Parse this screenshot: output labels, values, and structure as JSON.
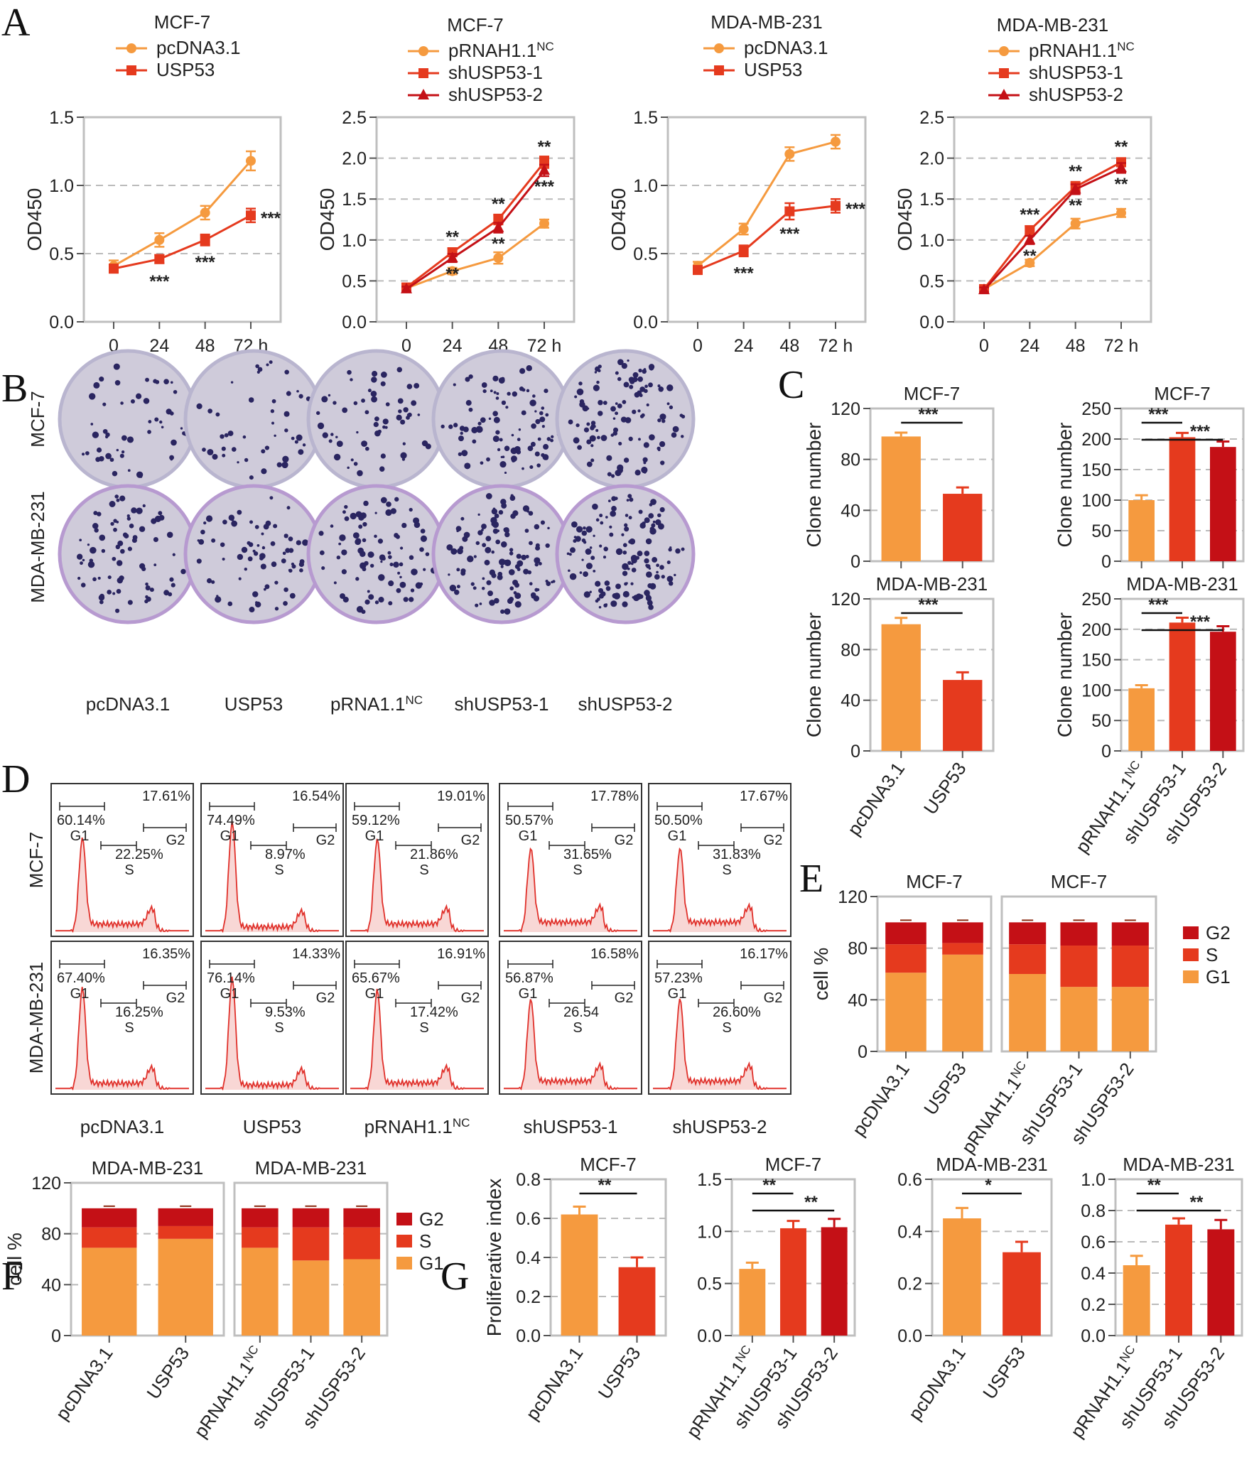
{
  "panel_labels": {
    "a": "A",
    "b": "B",
    "c": "C",
    "d": "D",
    "e": "E",
    "f": "F",
    "g": "G"
  },
  "colors": {
    "orange": "#F59A3F",
    "red": "#E53A1E",
    "darkred": "#C41016",
    "gridline": "#BBBBBB",
    "plate_bg": "#CFCBDA",
    "colony": "#2A2560",
    "flow_line": "#E0302A",
    "flow_fill": "#F8D7D5"
  },
  "units": {
    "hours": "h"
  },
  "legend_labels": {
    "g2": "G2",
    "s": "S",
    "g1": "G1"
  },
  "panel_b": {
    "row_labels": [
      "MCF-7",
      "MDA-MB-231"
    ],
    "col_labels": [
      "pcDNA3.1",
      "USP53",
      "pRNA1.1",
      "shUSP53-1",
      "shUSP53-2"
    ],
    "col_superscripts": [
      "",
      "",
      "NC",
      "",
      ""
    ]
  },
  "panel_d": {
    "row_labels": [
      "MCF-7",
      "MDA-MB-231"
    ],
    "col_labels": [
      "pcDNA3.1",
      "USP53",
      "pRNAH1.1",
      "shUSP53-1",
      "shUSP53-2"
    ],
    "col_superscripts": [
      "",
      "",
      "NC",
      "",
      ""
    ],
    "phase_labels": {
      "g1": "G1",
      "s": "S",
      "g2": "G2"
    },
    "cells": [
      [
        {
          "g1": "60.14%",
          "s": "22.25%",
          "g2": "17.61%"
        },
        {
          "g1": "74.49%",
          "s": "8.97%",
          "g2": "16.54%"
        },
        {
          "g1": "59.12%",
          "s": "21.86%",
          "g2": "19.01%"
        },
        {
          "g1": "50.57%",
          "s": "31.65%",
          "g2": "17.78%"
        },
        {
          "g1": "50.50%",
          "s": "31.83%",
          "g2": "17.67%"
        }
      ],
      [
        {
          "g1": "67.40%",
          "s": "16.25%",
          "g2": "16.35%"
        },
        {
          "g1": "76.14%",
          "s": "9.53%",
          "g2": "14.33%"
        },
        {
          "g1": "65.67%",
          "s": "17.42%",
          "g2": "16.91%"
        },
        {
          "g1": "56.87%",
          "s": "26.54",
          "g2": "16.58%"
        },
        {
          "g1": "57.23%",
          "s": "26.60%",
          "g2": "16.17%"
        }
      ]
    ]
  },
  "chart_data": [
    {
      "panel": "A",
      "type": "line",
      "title": "MCF-7",
      "ylabel": "OD450",
      "x": [
        "0",
        "24",
        "48",
        "72"
      ],
      "ylim": [
        0,
        1.5
      ],
      "yticks": [
        "0.0",
        "0.5",
        "1.0",
        "1.5"
      ],
      "series": [
        {
          "name": "pcDNA3.1",
          "values": [
            0.41,
            0.6,
            0.8,
            1.18
          ],
          "errors": [
            0.04,
            0.05,
            0.05,
            0.07
          ]
        },
        {
          "name": "USP53",
          "values": [
            0.39,
            0.46,
            0.6,
            0.78
          ],
          "errors": [
            0.03,
            0.03,
            0.04,
            0.05
          ]
        }
      ],
      "annotations": [
        [
          "***",
          "***",
          "***"
        ]
      ]
    },
    {
      "panel": "A",
      "type": "line",
      "title": "MCF-7",
      "ylabel": "OD450",
      "x": [
        "0",
        "24",
        "48",
        "72"
      ],
      "ylim": [
        0,
        2.5
      ],
      "yticks": [
        "0.0",
        "0.5",
        "1.0",
        "1.5",
        "2.0",
        "2.5"
      ],
      "series": [
        {
          "name": "pRNAH1.1",
          "superscript": "NC",
          "values": [
            0.41,
            0.62,
            0.78,
            1.2
          ],
          "errors": [
            0.03,
            0.04,
            0.07,
            0.05
          ]
        },
        {
          "name": "shUSP53-1",
          "values": [
            0.42,
            0.85,
            1.25,
            1.95
          ],
          "errors": [
            0.03,
            0.05,
            0.06,
            0.07
          ]
        },
        {
          "name": "shUSP53-2",
          "values": [
            0.4,
            0.78,
            1.15,
            1.85
          ],
          "errors": [
            0.03,
            0.05,
            0.06,
            0.07
          ]
        }
      ],
      "annotations": [
        [
          "**",
          "**",
          "**"
        ],
        [
          "**",
          "**",
          "***"
        ]
      ]
    },
    {
      "panel": "A",
      "type": "line",
      "title": "MDA-MB-231",
      "ylabel": "OD450",
      "x": [
        "0",
        "24",
        "48",
        "72"
      ],
      "ylim": [
        0,
        1.5
      ],
      "yticks": [
        "0.0",
        "0.5",
        "1.0",
        "1.5"
      ],
      "series": [
        {
          "name": "pcDNA3.1",
          "values": [
            0.41,
            0.68,
            1.23,
            1.32
          ],
          "errors": [
            0.03,
            0.04,
            0.05,
            0.05
          ]
        },
        {
          "name": "USP53",
          "values": [
            0.38,
            0.52,
            0.81,
            0.85
          ],
          "errors": [
            0.03,
            0.04,
            0.06,
            0.05
          ]
        }
      ],
      "annotations": [
        [
          "***",
          "***",
          "***"
        ]
      ]
    },
    {
      "panel": "A",
      "type": "line",
      "title": "MDA-MB-231",
      "ylabel": "OD450",
      "x": [
        "0",
        "24",
        "48",
        "72"
      ],
      "ylim": [
        0,
        2.5
      ],
      "yticks": [
        "0.0",
        "0.5",
        "1.0",
        "1.5",
        "2.0",
        "2.5"
      ],
      "series": [
        {
          "name": "pRNAH1.1",
          "superscript": "NC",
          "values": [
            0.4,
            0.72,
            1.2,
            1.33
          ],
          "errors": [
            0.03,
            0.04,
            0.06,
            0.05
          ]
        },
        {
          "name": "shUSP53-1",
          "values": [
            0.4,
            1.12,
            1.65,
            1.95
          ],
          "errors": [
            0.03,
            0.05,
            0.06,
            0.05
          ]
        },
        {
          "name": "shUSP53-2",
          "values": [
            0.39,
            1.0,
            1.62,
            1.88
          ],
          "errors": [
            0.03,
            0.05,
            0.06,
            0.06
          ]
        }
      ],
      "annotations": [
        [
          "***",
          "**",
          "**"
        ],
        [
          "**",
          "**",
          "**"
        ]
      ]
    },
    {
      "panel": "C",
      "type": "bar",
      "title": "MCF-7",
      "ylabel": "Clone number",
      "categories": [
        "pcDNA3.1",
        "USP53"
      ],
      "values": [
        98,
        53
      ],
      "errors": [
        3,
        5
      ],
      "ylim": [
        0,
        120
      ],
      "yticks": [
        "0",
        "40",
        "80",
        "120"
      ],
      "signif": [
        {
          "from": 0,
          "to": 1,
          "label": "***"
        }
      ],
      "showx": false
    },
    {
      "panel": "C",
      "type": "bar",
      "title": "MCF-7",
      "ylabel": "Clone number",
      "categories": [
        "pRNAH1.1",
        "shUSP53-1",
        "shUSP53-2"
      ],
      "values": [
        100,
        203,
        187
      ],
      "errors": [
        8,
        7,
        9
      ],
      "ylim": [
        0,
        250
      ],
      "yticks": [
        "0",
        "50",
        "100",
        "150",
        "200",
        "250"
      ],
      "signif": [
        {
          "from": 0,
          "to": 1,
          "label": "***"
        },
        {
          "from": 0,
          "to": 2,
          "label": "***"
        }
      ],
      "showx": false
    },
    {
      "panel": "C",
      "type": "bar",
      "title": "MDA-MB-231",
      "ylabel": "Clone number",
      "categories": [
        "pcDNA3.1",
        "USP53"
      ],
      "values": [
        100,
        56
      ],
      "errors": [
        5,
        6
      ],
      "ylim": [
        0,
        120
      ],
      "yticks": [
        "0",
        "40",
        "80",
        "120"
      ],
      "signif": [
        {
          "from": 0,
          "to": 1,
          "label": "***"
        }
      ],
      "showx": true
    },
    {
      "panel": "C",
      "type": "bar",
      "title": "MDA-MB-231",
      "ylabel": "Clone number",
      "categories": [
        "pRNAH1.1",
        "shUSP53-1",
        "shUSP53-2"
      ],
      "superscripts": [
        "NC",
        "",
        ""
      ],
      "values": [
        103,
        211,
        196
      ],
      "errors": [
        5,
        8,
        9
      ],
      "ylim": [
        0,
        250
      ],
      "yticks": [
        "0",
        "50",
        "100",
        "150",
        "200",
        "250"
      ],
      "signif": [
        {
          "from": 0,
          "to": 1,
          "label": "***"
        },
        {
          "from": 0,
          "to": 2,
          "label": "***"
        }
      ],
      "showx": true
    },
    {
      "panel": "E",
      "type": "stacked-bar",
      "title": "MCF-7",
      "ylabel": "cell %",
      "categories": [
        "pcDNA3.1",
        "USP53"
      ],
      "ylim": [
        0,
        120
      ],
      "yticks": [
        "0",
        "40",
        "80",
        "120"
      ],
      "series": [
        {
          "name": "G1",
          "values": [
            61,
            75
          ]
        },
        {
          "name": "S",
          "values": [
            22,
            9
          ]
        },
        {
          "name": "G2",
          "values": [
            17,
            16
          ]
        }
      ]
    },
    {
      "panel": "E",
      "type": "stacked-bar",
      "title": "MCF-7",
      "ylabel": "",
      "categories": [
        "pRNAH1.1",
        "shUSP53-1",
        "shUSP53-2"
      ],
      "superscripts": [
        "NC",
        "",
        ""
      ],
      "ylim": [
        0,
        120
      ],
      "series": [
        {
          "name": "G1",
          "values": [
            60,
            50,
            50
          ]
        },
        {
          "name": "S",
          "values": [
            23,
            32,
            32
          ]
        },
        {
          "name": "G2",
          "values": [
            17,
            18,
            18
          ]
        }
      ]
    },
    {
      "panel": "F",
      "type": "stacked-bar",
      "title": "MDA-MB-231",
      "ylabel": "cell %",
      "categories": [
        "pcDNA3.1",
        "USP53"
      ],
      "ylim": [
        0,
        120
      ],
      "yticks": [
        "0",
        "40",
        "80",
        "120"
      ],
      "series": [
        {
          "name": "G1",
          "values": [
            69,
            76
          ]
        },
        {
          "name": "S",
          "values": [
            16,
            10
          ]
        },
        {
          "name": "G2",
          "values": [
            15,
            14
          ]
        }
      ]
    },
    {
      "panel": "F",
      "type": "stacked-bar",
      "title": "MDA-MB-231",
      "ylabel": "",
      "categories": [
        "pRNAH1.1",
        "shUSP53-1",
        "shUSP53-2"
      ],
      "superscripts": [
        "NC",
        "",
        ""
      ],
      "ylim": [
        0,
        120
      ],
      "series": [
        {
          "name": "G1",
          "values": [
            69,
            59,
            60
          ]
        },
        {
          "name": "S",
          "values": [
            16,
            26,
            25
          ]
        },
        {
          "name": "G2",
          "values": [
            15,
            15,
            15
          ]
        }
      ]
    },
    {
      "panel": "G",
      "type": "bar",
      "title": "MCF-7",
      "ylabel": "Proliferative index",
      "categories": [
        "pcDNA3.1",
        "USP53"
      ],
      "values": [
        0.62,
        0.35
      ],
      "errors": [
        0.04,
        0.05
      ],
      "ylim": [
        0,
        0.8
      ],
      "yticks": [
        "0.0",
        "0.2",
        "0.4",
        "0.6",
        "0.8"
      ],
      "signif": [
        {
          "from": 0,
          "to": 1,
          "label": "**"
        }
      ],
      "showx": true
    },
    {
      "panel": "G",
      "type": "bar",
      "title": "MCF-7",
      "ylabel": "",
      "categories": [
        "pRNAH1.1",
        "shUSP53-1",
        "shUSP53-2"
      ],
      "superscripts": [
        "NC",
        "",
        ""
      ],
      "values": [
        0.64,
        1.03,
        1.04
      ],
      "errors": [
        0.06,
        0.07,
        0.08
      ],
      "ylim": [
        0,
        1.5
      ],
      "yticks": [
        "0.0",
        "0.5",
        "1.0",
        "1.5"
      ],
      "signif": [
        {
          "from": 0,
          "to": 1,
          "label": "**"
        },
        {
          "from": 0,
          "to": 2,
          "label": "**"
        }
      ],
      "showx": true
    },
    {
      "panel": "G",
      "type": "bar",
      "title": "MDA-MB-231",
      "ylabel": "",
      "categories": [
        "pcDNA3.1",
        "USP53"
      ],
      "values": [
        0.45,
        0.32
      ],
      "errors": [
        0.04,
        0.04
      ],
      "ylim": [
        0,
        0.6
      ],
      "yticks": [
        "0.0",
        "0.2",
        "0.4",
        "0.6"
      ],
      "signif": [
        {
          "from": 0,
          "to": 1,
          "label": "*"
        }
      ],
      "showx": true
    },
    {
      "panel": "G",
      "type": "bar",
      "title": "MDA-MB-231",
      "ylabel": "",
      "categories": [
        "pRNAH1.1",
        "shUSP53-1",
        "shUSP53-2"
      ],
      "superscripts": [
        "NC",
        "",
        ""
      ],
      "values": [
        0.45,
        0.71,
        0.68
      ],
      "errors": [
        0.06,
        0.04,
        0.06
      ],
      "ylim": [
        0,
        1.0
      ],
      "yticks": [
        "0.0",
        "0.2",
        "0.4",
        "0.6",
        "0.8",
        "1.0"
      ],
      "signif": [
        {
          "from": 0,
          "to": 1,
          "label": "**"
        },
        {
          "from": 0,
          "to": 2,
          "label": "**"
        }
      ],
      "showx": true
    }
  ]
}
